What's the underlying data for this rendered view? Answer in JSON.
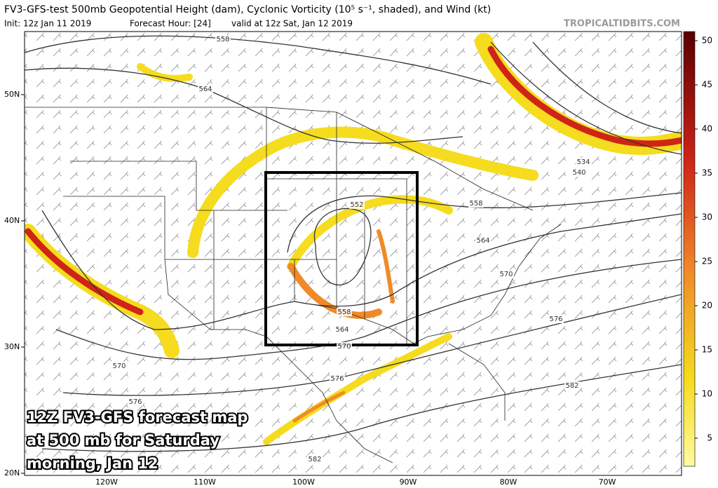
{
  "header": {
    "title": "FV3-GFS-test 500mb Geopotential Height (dam), Cyclonic Vorticity (10⁵ s⁻¹, shaded), and Wind (kt)",
    "init": "Init: 12z Jan 11 2019",
    "forecast_hour": "Forecast Hour: [24]",
    "valid": "valid at 12z Sat, Jan 12 2019",
    "site": "TROPICALTIDBITS.COM"
  },
  "map": {
    "latitudes": [
      "50N",
      "40N",
      "30N",
      "20N"
    ],
    "longitudes": [
      "120W",
      "110W",
      "100W",
      "90W",
      "80W",
      "70W"
    ],
    "contour_labels": [
      "558",
      "564",
      "552",
      "558",
      "564",
      "570",
      "576",
      "558",
      "564",
      "570",
      "570",
      "576",
      "576",
      "582",
      "582",
      "534",
      "540"
    ]
  },
  "colorbar": {
    "ticks": [
      5,
      10,
      15,
      20,
      25,
      30,
      35,
      40,
      45,
      50
    ]
  },
  "caption": [
    "12Z FV3-GFS forecast map",
    "at 500 mb for Saturday",
    "morning, Jan 12"
  ]
}
